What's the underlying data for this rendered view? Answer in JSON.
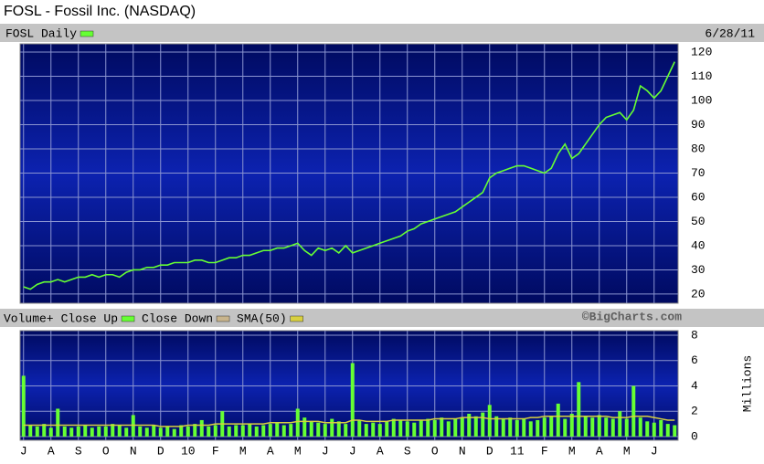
{
  "chart_data": [
    {
      "type": "line",
      "title": "FOSL - Fossil Inc. (NASDAQ)",
      "date_label": "6/28/11",
      "categories": [
        "J",
        null,
        null,
        null,
        "A",
        null,
        null,
        null,
        "S",
        null,
        null,
        null,
        "O",
        null,
        null,
        null,
        "N",
        null,
        null,
        null,
        "D",
        null,
        null,
        null,
        "10",
        null,
        null,
        null,
        "F",
        null,
        null,
        null,
        "M",
        null,
        null,
        null,
        "A",
        null,
        null,
        null,
        "M",
        null,
        null,
        null,
        "J",
        null,
        null,
        null,
        "J",
        null,
        null,
        null,
        "A",
        null,
        null,
        null,
        "S",
        null,
        null,
        null,
        "O",
        null,
        null,
        null,
        "N",
        null,
        null,
        null,
        "D",
        null,
        null,
        null,
        "11",
        null,
        null,
        null,
        "F",
        null,
        null,
        null,
        "M",
        null,
        null,
        null,
        "A",
        null,
        null,
        null,
        "M",
        null,
        null,
        null,
        "J",
        null,
        null,
        null
      ],
      "series": [
        {
          "name": "FOSL Daily",
          "color": "#66ff33",
          "values": [
            23,
            22,
            24,
            25,
            25,
            26,
            25,
            26,
            27,
            27,
            28,
            27,
            28,
            28,
            27,
            29,
            30,
            30,
            31,
            31,
            32,
            32,
            33,
            33,
            33,
            34,
            34,
            33,
            33,
            34,
            35,
            35,
            36,
            36,
            37,
            38,
            38,
            39,
            39,
            40,
            41,
            38,
            36,
            39,
            38,
            39,
            37,
            40,
            37,
            38,
            39,
            40,
            41,
            42,
            43,
            44,
            46,
            47,
            49,
            50,
            51,
            52,
            53,
            54,
            56,
            58,
            60,
            62,
            68,
            70,
            71,
            72,
            73,
            73,
            72,
            71,
            70,
            72,
            78,
            82,
            76,
            78,
            82,
            86,
            90,
            93,
            94,
            95,
            92,
            96,
            106,
            104,
            101,
            104,
            110,
            116
          ]
        }
      ],
      "ylim": [
        16.2,
        123.4
      ],
      "yticks": [
        20,
        30,
        40,
        50,
        60,
        70,
        80,
        90,
        100,
        110,
        120
      ],
      "grid": true
    },
    {
      "type": "bar",
      "title": "Volume+",
      "credit": "©BigCharts.com",
      "ylabel": "Millions",
      "series": [
        {
          "name": "Close Up",
          "color": "#66ff33",
          "values": [
            4.8,
            0.9,
            0.8,
            1.0,
            0.7,
            2.2,
            0.8,
            0.7,
            0.8,
            0.9,
            0.7,
            0.8,
            0.8,
            1.0,
            0.9,
            0.7,
            1.7,
            0.8,
            0.7,
            0.9,
            0.7,
            0.8,
            0.6,
            0.9,
            0.8,
            1.0,
            1.3,
            0.8,
            0.9,
            2.0,
            0.8,
            0.9,
            0.9,
            1.0,
            0.8,
            0.9,
            1.0,
            1.1,
            0.9,
            1.0,
            2.2,
            1.5,
            1.2,
            1.1,
            1.0,
            1.4,
            1.2,
            1.0,
            5.8,
            1.3,
            1.0,
            1.1,
            1.0,
            1.2,
            1.4,
            1.3,
            1.2,
            1.1,
            1.3,
            1.4,
            1.3,
            1.5,
            1.2,
            1.4,
            1.5,
            1.8,
            1.6,
            1.9,
            2.5,
            1.6,
            1.4,
            1.5,
            1.3,
            1.4,
            1.2,
            1.3,
            1.5,
            1.6,
            2.6,
            1.4,
            1.8,
            4.3,
            1.6,
            1.5,
            1.7,
            1.5,
            1.4,
            2.0,
            1.4,
            4.0,
            1.5,
            1.2,
            1.1,
            1.3,
            1.0,
            0.9
          ]
        },
        {
          "name": "Close Down",
          "color": "#c8b48c",
          "values": []
        },
        {
          "name": "SMA(50)",
          "color": "#d8d040",
          "values": [
            0.9,
            0.9,
            0.9,
            0.9,
            0.9,
            0.9,
            0.9,
            0.9,
            0.9,
            0.9,
            0.9,
            0.9,
            0.9,
            0.9,
            0.9,
            0.9,
            0.9,
            0.9,
            0.9,
            0.9,
            0.8,
            0.8,
            0.8,
            0.8,
            0.9,
            0.9,
            0.9,
            0.9,
            1.0,
            1.0,
            1.0,
            1.0,
            1.0,
            1.0,
            1.0,
            1.0,
            1.1,
            1.1,
            1.1,
            1.1,
            1.2,
            1.2,
            1.2,
            1.2,
            1.1,
            1.1,
            1.1,
            1.1,
            1.3,
            1.3,
            1.2,
            1.2,
            1.2,
            1.2,
            1.3,
            1.3,
            1.3,
            1.3,
            1.3,
            1.3,
            1.4,
            1.4,
            1.4,
            1.4,
            1.5,
            1.5,
            1.5,
            1.5,
            1.4,
            1.4,
            1.4,
            1.4,
            1.4,
            1.4,
            1.5,
            1.5,
            1.6,
            1.6,
            1.6,
            1.6,
            1.6,
            1.6,
            1.6,
            1.6,
            1.6,
            1.6,
            1.5,
            1.5,
            1.5,
            1.6,
            1.6,
            1.6,
            1.5,
            1.4,
            1.3,
            1.3
          ]
        }
      ],
      "ylim": [
        -0.29,
        8.36
      ],
      "yticks": [
        0,
        2,
        4,
        6,
        8
      ],
      "grid": true
    }
  ]
}
